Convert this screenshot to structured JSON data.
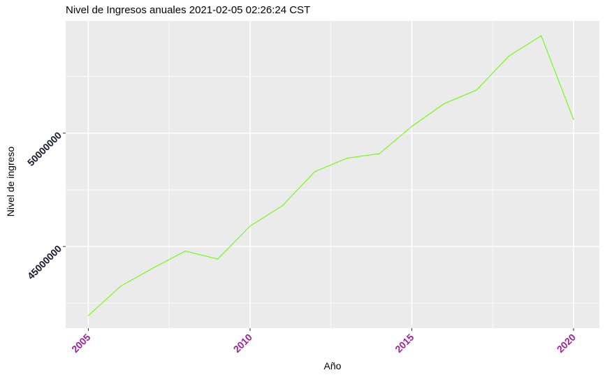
{
  "chart_data": {
    "type": "line",
    "title": "Nivel de Ingresos anuales 2021-02-05 02:26:24 CST",
    "xlabel": "Año",
    "ylabel": "Nivel de ingreso",
    "x": [
      2005,
      2006,
      2007,
      2008,
      2009,
      2010,
      2011,
      2012,
      2013,
      2014,
      2015,
      2016,
      2017,
      2018,
      2019,
      2020
    ],
    "series": [
      {
        "values": [
          41950000,
          43250000,
          44050000,
          44800000,
          44450000,
          45900000,
          46800000,
          48300000,
          48900000,
          49100000,
          50300000,
          51300000,
          51900000,
          53400000,
          54300000,
          50600000
        ]
      }
    ],
    "xlim": [
      2004.3,
      2020.8
    ],
    "ylim": [
      41400000,
      54950000
    ],
    "xticks": [
      2005,
      2010,
      2015,
      2020
    ],
    "xtick_labels": [
      "2005",
      "2010",
      "2015",
      "2020"
    ],
    "yticks": [
      45000000,
      50000000
    ],
    "ytick_labels": [
      "45000000",
      "50000000"
    ],
    "grid": true,
    "colors": {
      "line": "#66ff00",
      "panel_background": "#ebebeb",
      "grid": "#ffffff",
      "xtick_label": "#a020a0",
      "ytick_label": "#1a1a2e"
    }
  }
}
